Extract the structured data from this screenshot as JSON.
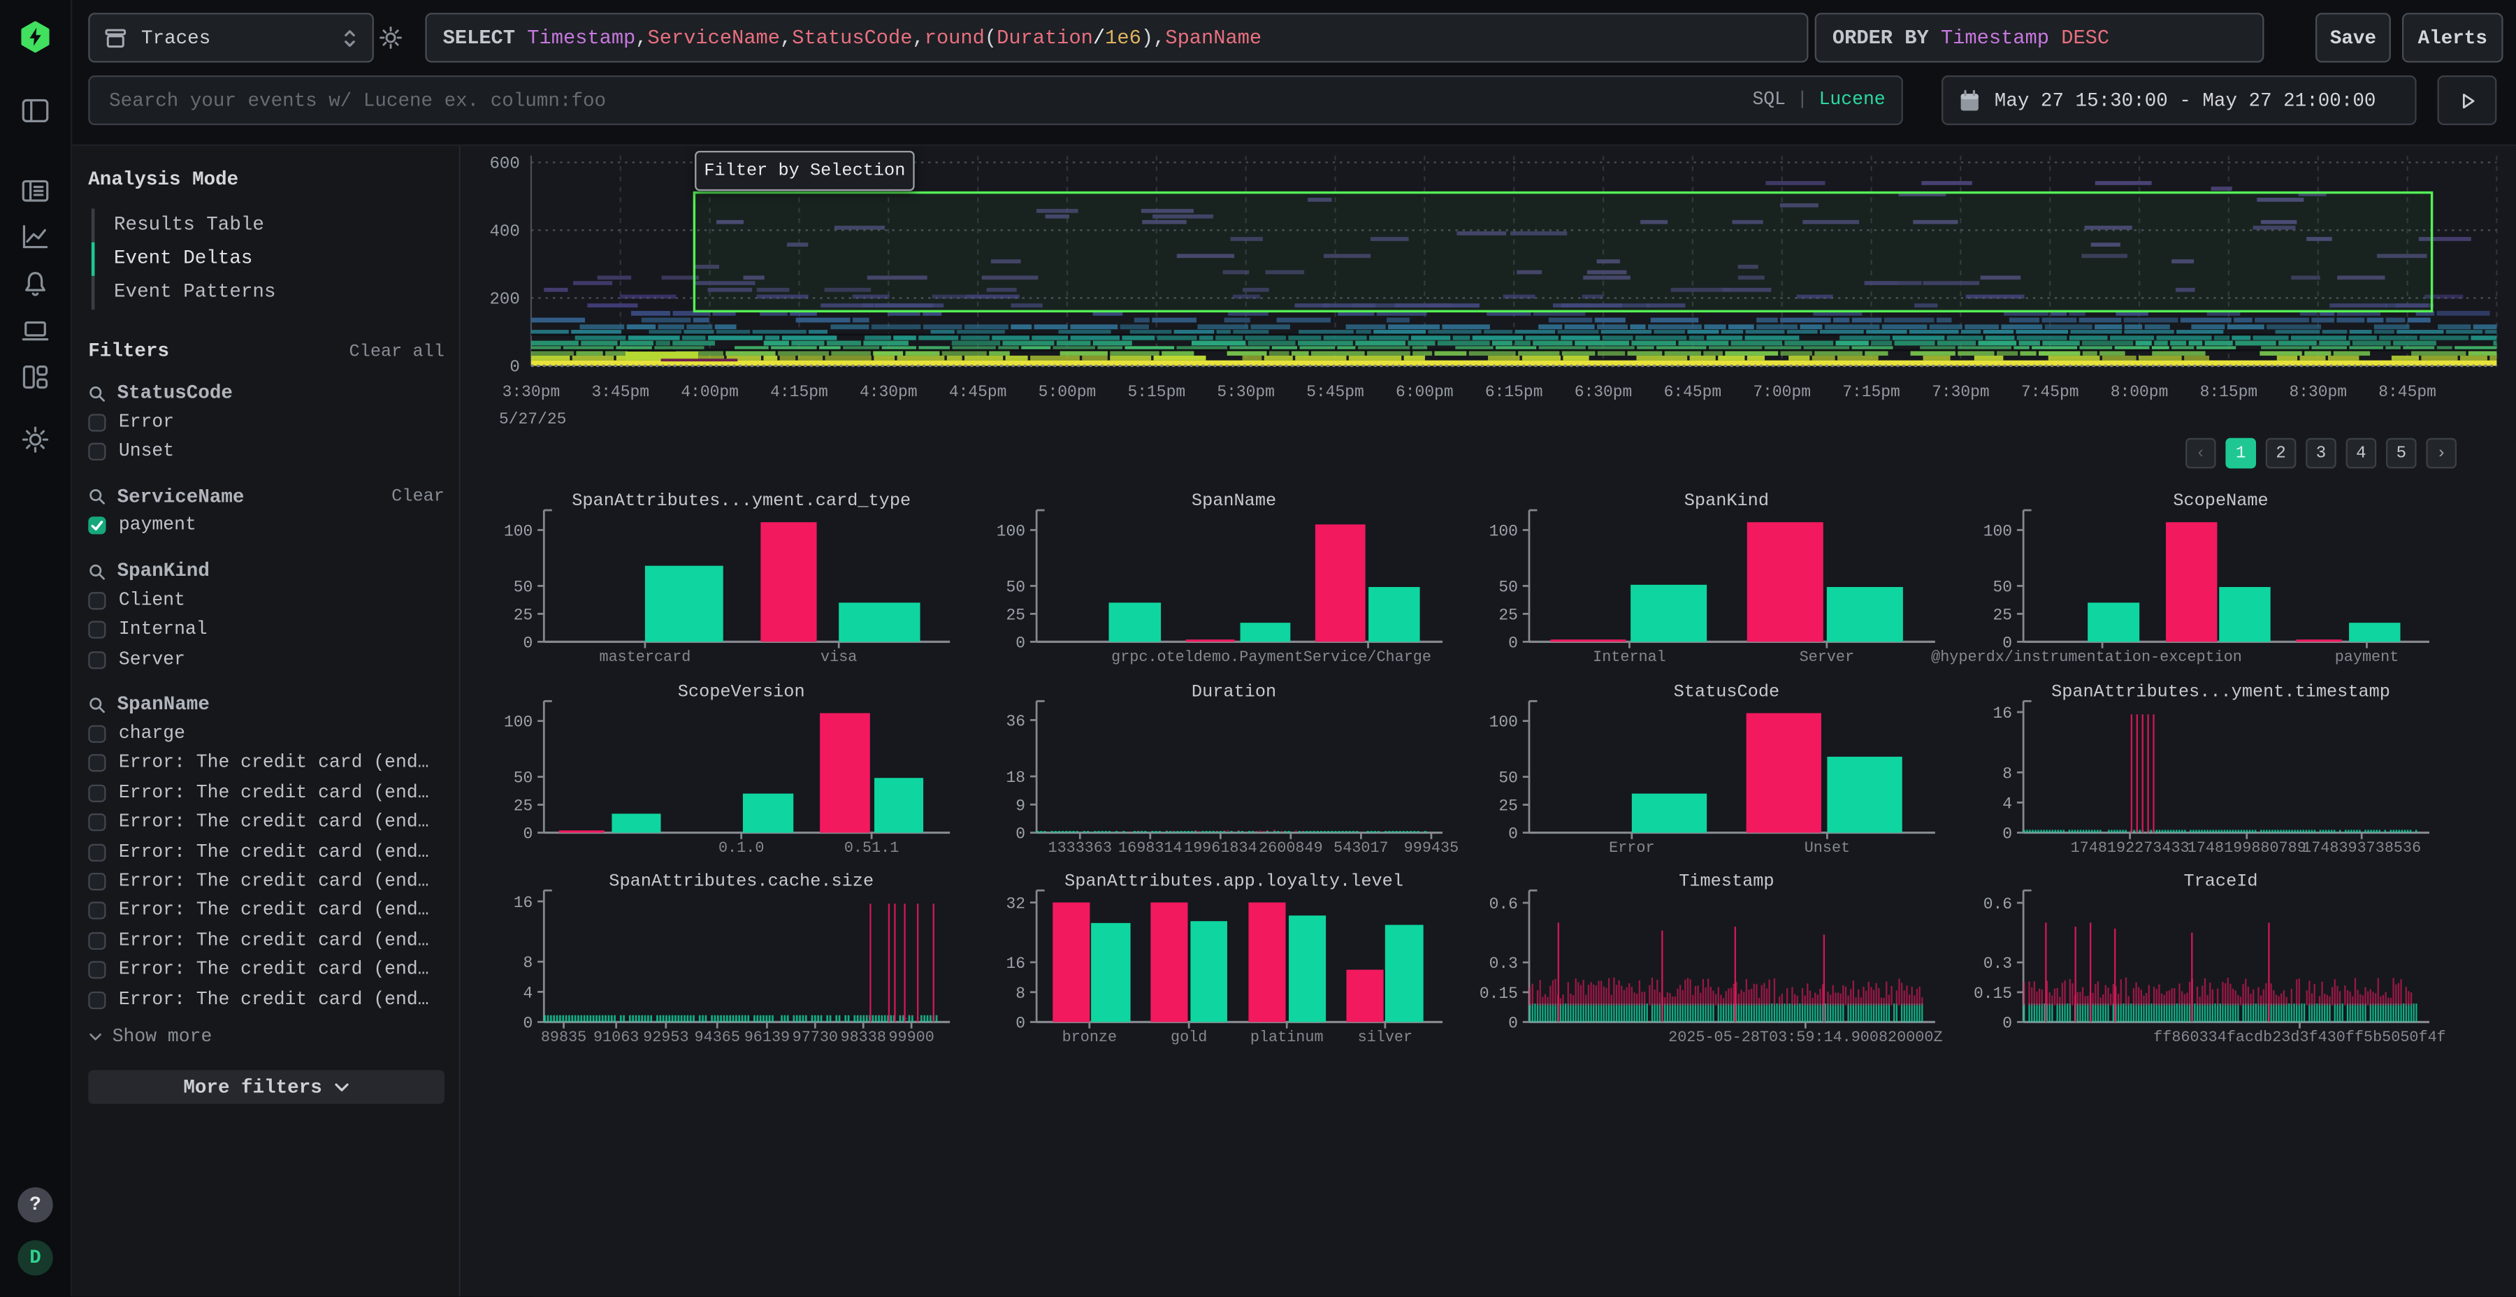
{
  "brand": {
    "help_label": "?",
    "avatar_initial": "D"
  },
  "colors": {
    "accent_green": "#1ec893",
    "chart_green": "#0fd6a0",
    "chart_pink": "#f2195f",
    "selection_green": "#55ef55",
    "lucene_green": "#2bd9a2",
    "logo_green": "#41e05f"
  },
  "topbar": {
    "source_label": "Traces",
    "select_tokens": [
      [
        "SELECT",
        "kw"
      ],
      [
        " ",
        "pun"
      ],
      [
        "Timestamp",
        "purple"
      ],
      [
        ",",
        "pun"
      ],
      [
        "ServiceName",
        "field"
      ],
      [
        ",",
        "pun"
      ],
      [
        "StatusCode",
        "field"
      ],
      [
        ",",
        "pun"
      ],
      [
        "round",
        "field"
      ],
      [
        "(",
        "pun"
      ],
      [
        "Duration",
        "field"
      ],
      [
        "/",
        "bright"
      ],
      [
        "1e6",
        "num"
      ],
      [
        ")",
        "pun"
      ],
      [
        ",",
        "pun"
      ],
      [
        "SpanName",
        "field"
      ]
    ],
    "order_tokens": [
      [
        "ORDER BY",
        "kw"
      ],
      [
        " ",
        "pun"
      ],
      [
        "Timestamp",
        "purple"
      ],
      [
        " ",
        "pun"
      ],
      [
        "DESC",
        "field"
      ]
    ],
    "save_label": "Save",
    "alerts_label": "Alerts",
    "search_placeholder": "Search your events w/ Lucene ex. column:foo",
    "lang_sql": "SQL",
    "lang_sep": " | ",
    "lang_lucene": "Lucene",
    "date_range": "May 27 15:30:00 - May 27 21:00:00"
  },
  "analysis": {
    "title": "Analysis Mode",
    "items": [
      {
        "label": "Results Table",
        "active": false
      },
      {
        "label": "Event Deltas",
        "active": true
      },
      {
        "label": "Event Patterns",
        "active": false
      }
    ]
  },
  "filters": {
    "title": "Filters",
    "clear_all": "Clear all",
    "groups": [
      {
        "name": "StatusCode",
        "items": [
          {
            "label": "Error",
            "checked": false
          },
          {
            "label": "Unset",
            "checked": false
          }
        ]
      },
      {
        "name": "ServiceName",
        "clear": "Clear",
        "items": [
          {
            "label": "payment",
            "checked": true
          }
        ]
      },
      {
        "name": "SpanKind",
        "items": [
          {
            "label": "Client",
            "checked": false
          },
          {
            "label": "Internal",
            "checked": false
          },
          {
            "label": "Server",
            "checked": false
          }
        ]
      },
      {
        "name": "SpanName",
        "show_more": "Show more",
        "items": [
          {
            "label": "charge",
            "checked": false
          },
          {
            "label": "Error: The credit card (end…",
            "checked": false
          },
          {
            "label": "Error: The credit card (end…",
            "checked": false
          },
          {
            "label": "Error: The credit card (end…",
            "checked": false
          },
          {
            "label": "Error: The credit card (end…",
            "checked": false
          },
          {
            "label": "Error: The credit card (end…",
            "checked": false
          },
          {
            "label": "Error: The credit card (end…",
            "checked": false
          },
          {
            "label": "Error: The credit card (end…",
            "checked": false
          },
          {
            "label": "Error: The credit card (end…",
            "checked": false
          },
          {
            "label": "Error: The credit card (end…",
            "checked": false
          }
        ]
      }
    ],
    "more_filters": "More filters"
  },
  "pagination": {
    "prev": "‹",
    "pages": [
      "1",
      "2",
      "3",
      "4",
      "5"
    ],
    "next": "›",
    "active": "1"
  },
  "chart_data": [
    {
      "type": "heatmap",
      "tooltip": "Filter by Selection",
      "x_date": "5/27/25",
      "x_ticks": [
        "3:30pm",
        "3:45pm",
        "4:00pm",
        "4:15pm",
        "4:30pm",
        "4:45pm",
        "5:00pm",
        "5:15pm",
        "5:30pm",
        "5:45pm",
        "6:00pm",
        "6:15pm",
        "6:30pm",
        "6:45pm",
        "7:00pm",
        "7:15pm",
        "7:30pm",
        "7:45pm",
        "8:00pm",
        "8:15pm",
        "8:30pm",
        "8:45pm"
      ],
      "y_ticks": [
        0,
        200,
        400,
        600
      ],
      "y_max": 620,
      "selection": {
        "x0": 0.083,
        "x1": 0.967,
        "y0": 161,
        "y1": 511
      },
      "separators": [
        46,
        92
      ],
      "features": [
        {
          "x0": 0.048,
          "x1": 0.085,
          "y0": 16,
          "y1": 42,
          "color": "#b6d832"
        },
        {
          "x0": 0.066,
          "x1": 0.105,
          "y0": 13,
          "y1": 21,
          "color": "#6e1f4e"
        }
      ],
      "bands": [
        {
          "y0": 0,
          "y1": 16,
          "color": "#e8e33a",
          "density": 1.0,
          "solid": true
        },
        {
          "y0": 16,
          "y1": 30,
          "color": "#c2db33",
          "density": 0.85
        },
        {
          "y0": 30,
          "y1": 44,
          "color": "#79c84f",
          "density": 0.9
        },
        {
          "y0": 44,
          "y1": 58,
          "color": "#46bd6e",
          "density": 0.92
        },
        {
          "y0": 58,
          "y1": 74,
          "color": "#2aa97e",
          "density": 0.92
        },
        {
          "y0": 74,
          "y1": 90,
          "color": "#219688",
          "density": 0.9
        },
        {
          "y0": 90,
          "y1": 106,
          "color": "#26818e",
          "density": 0.85
        },
        {
          "y0": 106,
          "y1": 122,
          "color": "#2f6d8e",
          "density": 0.75
        },
        {
          "y0": 122,
          "y1": 142,
          "color": "#34618d",
          "density": 0.55
        },
        {
          "y0": 142,
          "y1": 162,
          "color": "#3d4f89",
          "density": 0.42
        },
        {
          "y0": 162,
          "y1": 184,
          "color": "#433f7d",
          "density": 0.32
        },
        {
          "y0": 184,
          "y1": 210,
          "color": "#3e3572",
          "density": 0.2
        },
        {
          "y0": 210,
          "y1": 250,
          "color": "#443b6e",
          "density": 0.12
        },
        {
          "y0": 250,
          "y1": 330,
          "color": "#4a4172",
          "density": 0.075
        },
        {
          "y0": 330,
          "y1": 430,
          "color": "#4c4478",
          "density": 0.05
        },
        {
          "y0": 430,
          "y1": 545,
          "color": "#4e467c",
          "density": 0.032
        }
      ]
    },
    {
      "type": "bar",
      "title": "SpanAttributes...yment.card_type",
      "y_ticks": [
        0,
        25,
        50,
        100
      ],
      "y_max": 112,
      "bars": [
        {
          "s": "g",
          "x": 0.256,
          "w": 0.198,
          "v": 68
        },
        {
          "s": "p",
          "x": 0.549,
          "w": 0.142,
          "v": 107
        },
        {
          "s": "g",
          "x": 0.747,
          "w": 0.206,
          "v": 35
        }
      ],
      "x_ticks": [
        {
          "x": 0.256,
          "label": "mastercard"
        },
        {
          "x": 0.747,
          "label": "visa"
        }
      ]
    },
    {
      "type": "bar",
      "title": "SpanName",
      "y_ticks": [
        0,
        25,
        50,
        100
      ],
      "y_max": 112,
      "bars": [
        {
          "s": "g",
          "x": 0.183,
          "w": 0.132,
          "v": 35
        },
        {
          "s": "p",
          "x": 0.378,
          "w": 0.124,
          "v": 2
        },
        {
          "s": "g",
          "x": 0.516,
          "w": 0.127,
          "v": 17
        },
        {
          "s": "p",
          "x": 0.706,
          "w": 0.127,
          "v": 105
        },
        {
          "s": "g",
          "x": 0.841,
          "w": 0.13,
          "v": 49
        }
      ],
      "x_ticks": [
        {
          "x": 0.84,
          "label": "grpc.oteldemo.PaymentService/Charge",
          "anchor": "end",
          "label_x": 1.0
        }
      ]
    },
    {
      "type": "bar",
      "title": "SpanKind",
      "y_ticks": [
        0,
        25,
        50,
        100
      ],
      "y_max": 112,
      "bars": [
        {
          "s": "p",
          "x": 0.054,
          "w": 0.191,
          "v": 2
        },
        {
          "s": "g",
          "x": 0.257,
          "w": 0.193,
          "v": 51
        },
        {
          "s": "p",
          "x": 0.552,
          "w": 0.193,
          "v": 107
        },
        {
          "s": "g",
          "x": 0.754,
          "w": 0.193,
          "v": 49
        }
      ],
      "x_ticks": [
        {
          "x": 0.254,
          "label": "Internal"
        },
        {
          "x": 0.754,
          "label": "Server"
        }
      ]
    },
    {
      "type": "bar",
      "title": "ScopeName",
      "y_ticks": [
        0,
        25,
        50,
        100
      ],
      "y_max": 112,
      "bars": [
        {
          "s": "g",
          "x": 0.163,
          "w": 0.131,
          "v": 35
        },
        {
          "s": "p",
          "x": 0.361,
          "w": 0.13,
          "v": 107
        },
        {
          "s": "g",
          "x": 0.496,
          "w": 0.13,
          "v": 49
        },
        {
          "s": "p",
          "x": 0.691,
          "w": 0.116,
          "v": 2
        },
        {
          "s": "g",
          "x": 0.825,
          "w": 0.13,
          "v": 17
        }
      ],
      "x_ticks": [
        {
          "x": 0.2,
          "label": "@hyperdx/instrumentation-exception",
          "label_x": 0.16
        },
        {
          "x": 0.87,
          "label": "payment"
        }
      ]
    },
    {
      "type": "bar",
      "title": "ScopeVersion",
      "y_ticks": [
        0,
        25,
        50,
        100
      ],
      "y_max": 112,
      "bars": [
        {
          "s": "p",
          "x": 0.038,
          "w": 0.115,
          "v": 2
        },
        {
          "s": "g",
          "x": 0.172,
          "w": 0.124,
          "v": 17
        },
        {
          "s": "g",
          "x": 0.504,
          "w": 0.128,
          "v": 35
        },
        {
          "s": "p",
          "x": 0.699,
          "w": 0.127,
          "v": 107
        },
        {
          "s": "g",
          "x": 0.837,
          "w": 0.124,
          "v": 49
        }
      ],
      "x_ticks": [
        {
          "x": 0.5,
          "label": "0.1.0"
        },
        {
          "x": 0.83,
          "label": "0.51.1"
        }
      ]
    },
    {
      "type": "strips",
      "title": "Duration",
      "y_ticks": [
        0,
        9,
        18,
        36
      ],
      "y_max": 40,
      "strips": {
        "n": 110,
        "green_h": 0.55,
        "green_density": 0.8,
        "pink_band": [
          0.5,
          0.9
        ],
        "pink_density": 0.3,
        "pink_range": [
          0.22,
          0.68
        ],
        "spikes": []
      },
      "x_ticks": [
        {
          "x": 0.11,
          "label": "1333363"
        },
        {
          "x": 0.288,
          "label": "1698314"
        },
        {
          "x": 0.466,
          "label": "19961834"
        },
        {
          "x": 0.644,
          "label": "2600849"
        },
        {
          "x": 0.822,
          "label": "543017"
        },
        {
          "x": 1.0,
          "label": "999435"
        }
      ]
    },
    {
      "type": "bar",
      "title": "StatusCode",
      "y_ticks": [
        0,
        25,
        50,
        100
      ],
      "y_max": 112,
      "bars": [
        {
          "s": "g",
          "x": 0.26,
          "w": 0.19,
          "v": 35
        },
        {
          "s": "p",
          "x": 0.55,
          "w": 0.19,
          "v": 107
        },
        {
          "s": "g",
          "x": 0.755,
          "w": 0.19,
          "v": 68
        }
      ],
      "x_ticks": [
        {
          "x": 0.26,
          "label": "Error"
        },
        {
          "x": 0.755,
          "label": "Unset"
        }
      ]
    },
    {
      "type": "strips",
      "title": "SpanAttributes...yment.timestamp",
      "y_ticks": [
        0,
        4,
        8,
        16
      ],
      "y_max": 16.6,
      "strips": {
        "n": 140,
        "green_h": 0.38,
        "green_density": 0.88,
        "spikes": [
          [
            0.272,
            15.7
          ],
          [
            0.286,
            15.7
          ],
          [
            0.3,
            15.7
          ],
          [
            0.314,
            15.7
          ],
          [
            0.328,
            15.7
          ]
        ]
      },
      "x_ticks": [
        {
          "x": 0.27,
          "label": "1748192273433"
        },
        {
          "x": 0.566,
          "label": "1748199880789"
        },
        {
          "x": 0.857,
          "label": "1748393738536"
        }
      ]
    },
    {
      "type": "strips",
      "title": "SpanAttributes.cache.size",
      "y_ticks": [
        0,
        4,
        8,
        16
      ],
      "y_max": 16.6,
      "strips": {
        "n": 130,
        "green_h": 0.9,
        "green_density": 0.82,
        "pink_band": [
          0.5,
          0.95
        ],
        "pink_density": 0.45,
        "pink_range": [
          0.78,
          1.0
        ],
        "spikes": [
          [
            0.825,
            15.7
          ],
          [
            0.872,
            15.7
          ],
          [
            0.887,
            15.7
          ],
          [
            0.912,
            15.7
          ],
          [
            0.945,
            15.7
          ],
          [
            0.985,
            15.7
          ]
        ]
      },
      "x_ticks": [
        {
          "x": 0.05,
          "label": "89835"
        },
        {
          "x": 0.183,
          "label": "91063"
        },
        {
          "x": 0.309,
          "label": "92953"
        },
        {
          "x": 0.439,
          "label": "94365"
        },
        {
          "x": 0.565,
          "label": "96139"
        },
        {
          "x": 0.687,
          "label": "97730"
        },
        {
          "x": 0.809,
          "label": "98338"
        },
        {
          "x": 0.931,
          "label": "99900"
        }
      ]
    },
    {
      "type": "bar",
      "title": "SpanAttributes.app.loyalty.level",
      "y_ticks": [
        0,
        8,
        16,
        32
      ],
      "y_max": 33.5,
      "bars": [
        {
          "s": "p",
          "x": 0.041,
          "w": 0.094,
          "v": 32
        },
        {
          "s": "g",
          "x": 0.138,
          "w": 0.1,
          "v": 26.5
        },
        {
          "s": "p",
          "x": 0.289,
          "w": 0.094,
          "v": 32
        },
        {
          "s": "g",
          "x": 0.39,
          "w": 0.093,
          "v": 27
        },
        {
          "s": "p",
          "x": 0.537,
          "w": 0.094,
          "v": 32
        },
        {
          "s": "g",
          "x": 0.639,
          "w": 0.094,
          "v": 28.5
        },
        {
          "s": "p",
          "x": 0.785,
          "w": 0.094,
          "v": 14
        },
        {
          "s": "g",
          "x": 0.883,
          "w": 0.097,
          "v": 26
        }
      ],
      "x_ticks": [
        {
          "x": 0.134,
          "label": "bronze"
        },
        {
          "x": 0.386,
          "label": "gold"
        },
        {
          "x": 0.634,
          "label": "platinum"
        },
        {
          "x": 0.883,
          "label": "silver"
        }
      ]
    },
    {
      "type": "strips",
      "title": "Timestamp",
      "y_ticks": [
        0,
        0.15,
        0.3,
        0.6
      ],
      "y_max": 0.63,
      "strips": {
        "n": 155,
        "green_h": 0.093,
        "green_density": 0.97,
        "pink_band": [
          0.12,
          0.225
        ],
        "pink_density": 0.93,
        "spikes": [
          [
            0.072,
            0.5
          ],
          [
            0.335,
            0.46
          ],
          [
            0.52,
            0.48
          ],
          [
            0.745,
            0.44
          ]
        ]
      },
      "x_ticks": [
        {
          "x": 0.7,
          "label": "2025-05-28T03:59:14.900820000Z"
        }
      ]
    },
    {
      "type": "strips",
      "title": "TraceId",
      "y_ticks": [
        0,
        0.15,
        0.3,
        0.6
      ],
      "y_max": 0.63,
      "strips": {
        "n": 155,
        "green_h": 0.093,
        "green_density": 0.96,
        "pink_band": [
          0.12,
          0.225
        ],
        "pink_density": 0.9,
        "spikes": [
          [
            0.055,
            0.5
          ],
          [
            0.13,
            0.48
          ],
          [
            0.168,
            0.5
          ],
          [
            0.23,
            0.47
          ],
          [
            0.425,
            0.45
          ],
          [
            0.62,
            0.5
          ]
        ]
      },
      "x_ticks": [
        {
          "x": 0.7,
          "label": "ff860334facdb23d3f430ff5b5050f4f"
        }
      ]
    }
  ]
}
